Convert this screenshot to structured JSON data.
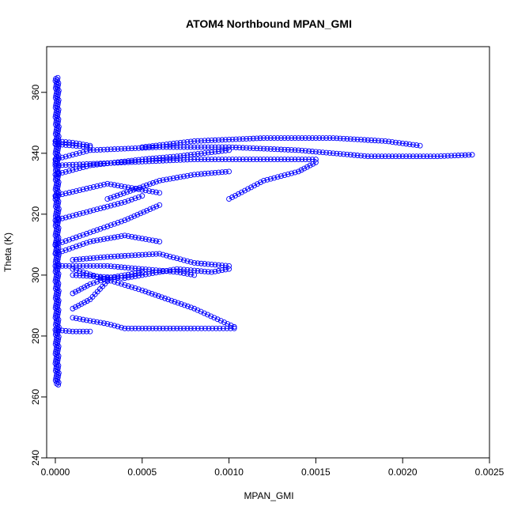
{
  "colors": {
    "series": "#0000ff",
    "axis": "#000000",
    "background": "#ffffff"
  },
  "chart_data": {
    "type": "scatter",
    "title": "ATOM4 Northbound MPAN_GMI",
    "xlabel": "MPAN_GMI",
    "ylabel": "Theta (K)",
    "xlim": [
      -5e-05,
      0.0025
    ],
    "ylim": [
      240,
      375
    ],
    "x_ticks": [
      0.0,
      0.0005,
      0.001,
      0.0015,
      0.002,
      0.0025
    ],
    "x_tick_labels": [
      "0.0000",
      "0.0005",
      "0.0010",
      "0.0015",
      "0.0020",
      "0.0025"
    ],
    "y_ticks": [
      240,
      260,
      280,
      300,
      320,
      340,
      360
    ],
    "y_tick_labels": [
      "240",
      "260",
      "280",
      "300",
      "320",
      "340",
      "360"
    ],
    "grid": false,
    "legend": "none",
    "marker": "open-circle",
    "connect_points": true,
    "series": [
      {
        "trace": [
          [
            0.0,
            338
          ],
          [
            0.0002,
            341
          ],
          [
            0.0006,
            342
          ],
          [
            0.001,
            342
          ],
          [
            0.0014,
            341
          ],
          [
            0.0018,
            339
          ],
          [
            0.0022,
            339
          ],
          [
            0.0024,
            339.5
          ]
        ]
      },
      {
        "trace": [
          [
            0.0005,
            342
          ],
          [
            0.0008,
            344
          ],
          [
            0.0012,
            345
          ],
          [
            0.0016,
            345
          ],
          [
            0.0019,
            344
          ],
          [
            0.0021,
            342.5
          ]
        ]
      },
      {
        "trace": [
          [
            0.0,
            336
          ],
          [
            0.0004,
            337
          ],
          [
            0.0008,
            338
          ],
          [
            0.0012,
            338
          ],
          [
            0.0015,
            338
          ]
        ]
      },
      {
        "trace": [
          [
            0.001,
            325
          ],
          [
            0.0012,
            331
          ],
          [
            0.0014,
            334
          ],
          [
            0.0015,
            337
          ]
        ]
      },
      {
        "trace": [
          [
            0.0003,
            325
          ],
          [
            0.0006,
            331
          ],
          [
            0.0008,
            333
          ],
          [
            0.001,
            334
          ]
        ]
      },
      {
        "trace": [
          [
            0.0,
            333
          ],
          [
            0.0002,
            336
          ],
          [
            0.0005,
            338
          ],
          [
            0.0007,
            339
          ],
          [
            0.001,
            341
          ]
        ]
      },
      {
        "trace": [
          [
            0.0,
            326
          ],
          [
            0.0003,
            330
          ],
          [
            0.0005,
            328
          ],
          [
            0.0006,
            327
          ]
        ]
      },
      {
        "trace": [
          [
            0.0,
            318
          ],
          [
            0.0002,
            321
          ],
          [
            0.0004,
            324
          ],
          [
            0.0005,
            326
          ]
        ]
      },
      {
        "trace": [
          [
            0.0,
            310
          ],
          [
            0.0002,
            314
          ],
          [
            0.0003,
            316
          ],
          [
            0.0004,
            318
          ],
          [
            0.0006,
            323
          ]
        ]
      },
      {
        "trace": [
          [
            0.0,
            307
          ],
          [
            0.0002,
            311
          ],
          [
            0.0004,
            313
          ],
          [
            0.0006,
            311
          ]
        ]
      },
      {
        "trace": [
          [
            0.0001,
            305
          ],
          [
            0.0003,
            306
          ],
          [
            0.0006,
            307
          ],
          [
            0.0008,
            304
          ],
          [
            0.001,
            303
          ]
        ]
      },
      {
        "trace": [
          [
            0.0,
            303
          ],
          [
            0.0003,
            303
          ],
          [
            0.0005,
            302
          ],
          [
            0.0007,
            301
          ],
          [
            0.0008,
            300
          ]
        ]
      },
      {
        "trace": [
          [
            0.0001,
            300
          ],
          [
            0.0004,
            299
          ],
          [
            0.0007,
            302
          ],
          [
            0.0009,
            301
          ],
          [
            0.001,
            302
          ]
        ]
      },
      {
        "trace": [
          [
            0.0001,
            294
          ],
          [
            0.0002,
            297
          ],
          [
            0.0003,
            299
          ],
          [
            0.0005,
            301
          ]
        ]
      },
      {
        "trace": [
          [
            0.0001,
            289
          ],
          [
            0.0002,
            292
          ],
          [
            0.0003,
            298
          ]
        ]
      },
      {
        "trace": [
          [
            0.0001,
            286
          ],
          [
            0.0002,
            285
          ],
          [
            0.0003,
            284
          ],
          [
            0.0004,
            282.5
          ],
          [
            0.0006,
            282.5
          ],
          [
            0.0008,
            282.5
          ],
          [
            0.00103,
            282.5
          ]
        ]
      },
      {
        "trace": [
          [
            0.0001,
            302
          ],
          [
            0.0005,
            295
          ],
          [
            0.0008,
            289
          ],
          [
            0.00103,
            283
          ]
        ]
      },
      {
        "trace": [
          [
            0.0,
            282
          ],
          [
            0.0001,
            281.5
          ],
          [
            0.0002,
            281.5
          ]
        ]
      },
      {
        "trace": [
          [
            0.0,
            343
          ],
          [
            0.0001,
            342.5
          ],
          [
            0.0002,
            342
          ]
        ]
      },
      {
        "trace": [
          [
            0.0,
            344
          ],
          [
            0.0001,
            343.5
          ],
          [
            0.0002,
            342.5
          ]
        ]
      }
    ],
    "vertical_band": {
      "x": 0.0,
      "ymin": 264,
      "ymax": 365
    }
  }
}
